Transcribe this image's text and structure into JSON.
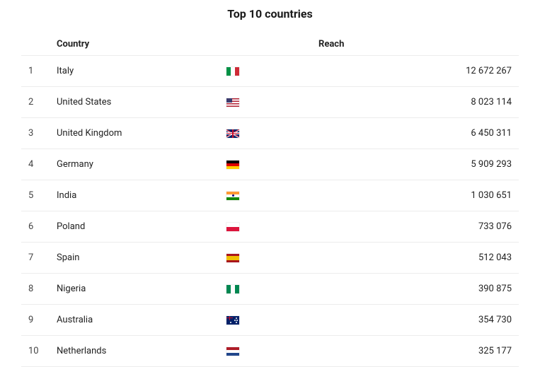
{
  "title": "Top 10 countries",
  "headers": {
    "country": "Country",
    "reach": "Reach"
  },
  "rows": [
    {
      "rank": "1",
      "country": "Italy",
      "flag": "it",
      "reach": "12 672 267"
    },
    {
      "rank": "2",
      "country": "United States",
      "flag": "us",
      "reach": "8 023 114"
    },
    {
      "rank": "3",
      "country": "United Kingdom",
      "flag": "gb",
      "reach": "6 450 311"
    },
    {
      "rank": "4",
      "country": "Germany",
      "flag": "de",
      "reach": "5 909 293"
    },
    {
      "rank": "5",
      "country": "India",
      "flag": "in",
      "reach": "1 030 651"
    },
    {
      "rank": "6",
      "country": "Poland",
      "flag": "pl",
      "reach": "733 076"
    },
    {
      "rank": "7",
      "country": "Spain",
      "flag": "es",
      "reach": "512 043"
    },
    {
      "rank": "8",
      "country": "Nigeria",
      "flag": "ng",
      "reach": "390 875"
    },
    {
      "rank": "9",
      "country": "Australia",
      "flag": "au",
      "reach": "354 730"
    },
    {
      "rank": "10",
      "country": "Netherlands",
      "flag": "nl",
      "reach": "325 177"
    }
  ],
  "flag_markup": {
    "it": "<div class='s1'></div><div class='s2'></div><div class='s3'></div>",
    "us": "<div class='c'></div>",
    "gb": "<div class='d1'></div><div class='d2'></div><div class='d3'></div><div class='d4'></div><div class='h'></div><div class='v'></div><div class='hr'></div><div class='vr'></div>",
    "de": "<div class='s1'></div><div class='s2'></div><div class='s3'></div>",
    "in": "<div class='s1'></div><div class='s2'></div><div class='s3'></div><div class='c'></div>",
    "pl": "<div class='s1'></div><div class='s2'></div>",
    "es": "<div class='s1'></div><div class='s2'></div><div class='s3'></div>",
    "ng": "<div class='s1'></div><div class='s2'></div><div class='s3'></div>",
    "au": "<div class='uj'></div><div class='st st1'></div><div class='st st2'></div><div class='st st3'></div><div class='st st4'></div><div class='st st5'></div>",
    "nl": "<div class='s1'></div><div class='s2'></div><div class='s3'></div>"
  }
}
